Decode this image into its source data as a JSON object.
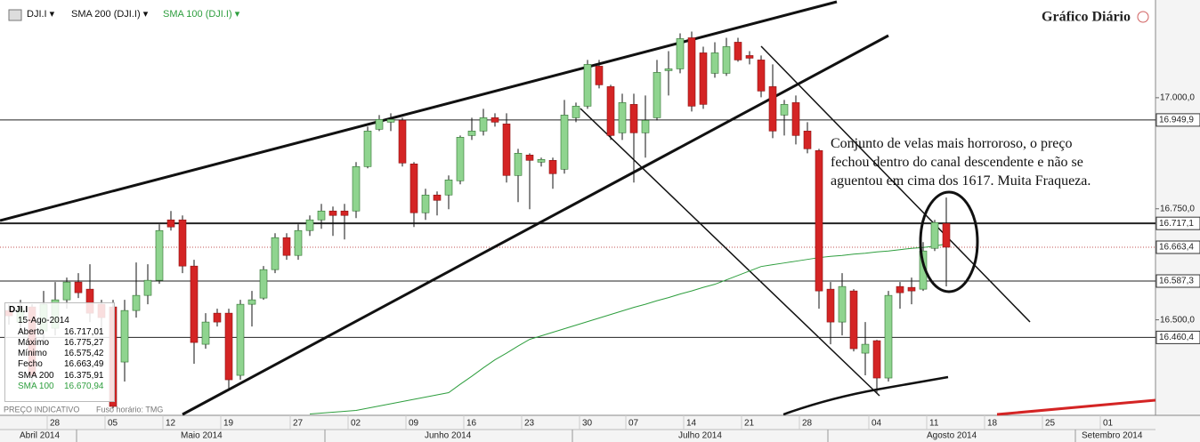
{
  "chart_data": {
    "type": "candlestick",
    "title": "Gráfico Diário",
    "toolbar": [
      "DJI.I",
      "SMA 200 (DJI.I)",
      "SMA 100 (DJI.I)"
    ],
    "footer": [
      "PREÇO INDICATIVO",
      "Fuso horário: TMG"
    ],
    "months": [
      "Abril 2014",
      "Maio 2014",
      "Junho 2014",
      "Julho 2014",
      "Agosto 2014",
      "Setembro 2014"
    ],
    "categories": [
      null,
      null,
      null,
      null,
      "28",
      null,
      null,
      null,
      null,
      "05",
      null,
      null,
      null,
      null,
      "12",
      null,
      null,
      null,
      null,
      "19",
      null,
      null,
      null,
      null,
      null,
      "27",
      null,
      null,
      null,
      null,
      "02",
      null,
      null,
      null,
      null,
      "09",
      null,
      null,
      null,
      null,
      "16",
      null,
      null,
      null,
      null,
      "23",
      null,
      null,
      null,
      null,
      "30",
      null,
      null,
      null,
      "07",
      null,
      null,
      null,
      null,
      "14",
      null,
      null,
      null,
      null,
      "21",
      null,
      null,
      null,
      null,
      "28",
      null,
      null,
      null,
      null,
      null,
      "04",
      null,
      null,
      null,
      null,
      "11",
      null
    ],
    "future_ticks": [
      "18",
      "25",
      "01"
    ],
    "ylim": [
      16285,
      17220
    ],
    "yticks": [
      {
        "value": 17000,
        "label": "17.000,0"
      },
      {
        "value": 16750,
        "label": "16.750,0"
      },
      {
        "value": 16500,
        "label": "16.500,0"
      }
    ],
    "levels": [
      {
        "value": 16949.9,
        "label": "16.949,9"
      },
      {
        "value": 16717.1,
        "label": "16.717,1"
      },
      {
        "value": 16663.4,
        "label": "16.663,4"
      },
      {
        "value": 16587.3,
        "label": "16.587,3"
      },
      {
        "value": 16460.4,
        "label": "16.460,4"
      }
    ],
    "up_color": "#8fd48f",
    "down_color": "#d42424",
    "open": [
      16521,
      16495,
      16529,
      16475,
      16481,
      16545,
      16585,
      16569,
      16535,
      16529,
      16405,
      16521,
      16555,
      16589,
      16725,
      16725,
      16621,
      16445,
      16515,
      16515,
      16375,
      16535,
      16549,
      16613,
      16685,
      16645,
      16701,
      16725,
      16745,
      16745,
      16745,
      16845,
      16929,
      16945,
      16949,
      16851,
      16741,
      16781,
      16781,
      16813,
      16915,
      16925,
      16955,
      16941,
      16825,
      16871,
      16855,
      16859,
      16839,
      16955,
      16981,
      17071,
      17025,
      16921,
      16985,
      16921,
      16955,
      17061,
      17065,
      17135,
      17101,
      17055,
      17055,
      17125,
      17095,
      17085,
      17025,
      16961,
      16989,
      16925,
      16881,
      16569,
      16495,
      16565,
      16425,
      16453,
      16369,
      16575,
      16573,
      16569,
      16661,
      16717.01
    ],
    "high": [
      16535,
      16545,
      16535,
      16565,
      16585,
      16595,
      16605,
      16625,
      16545,
      16545,
      16545,
      16629,
      16625,
      16715,
      16745,
      16735,
      16635,
      16515,
      16525,
      16525,
      16545,
      16565,
      16621,
      16695,
      16695,
      16715,
      16735,
      16761,
      16755,
      16761,
      16855,
      16935,
      16961,
      16965,
      16955,
      16855,
      16795,
      16789,
      16825,
      16915,
      16955,
      16975,
      16965,
      16965,
      16885,
      16875,
      16865,
      16865,
      16995,
      16989,
      17085,
      17085,
      17029,
      17009,
      17009,
      17005,
      17085,
      17105,
      17145,
      17149,
      17115,
      17125,
      17135,
      17135,
      17105,
      17095,
      17075,
      16995,
      17005,
      16945,
      16885,
      16585,
      16605,
      16569,
      16495,
      16455,
      16565,
      16585,
      16595,
      16675,
      16725,
      16775.27
    ],
    "low": [
      16489,
      16465,
      16355,
      16445,
      16465,
      16525,
      16549,
      16495,
      16465,
      16301,
      16361,
      16505,
      16535,
      16581,
      16701,
      16605,
      16401,
      16435,
      16485,
      16341,
      16365,
      16485,
      16545,
      16605,
      16635,
      16635,
      16689,
      16705,
      16689,
      16681,
      16729,
      16841,
      16925,
      16925,
      16845,
      16709,
      16725,
      16735,
      16749,
      16805,
      16905,
      16915,
      16935,
      16809,
      16765,
      16749,
      16845,
      16795,
      16829,
      16945,
      16975,
      17021,
      16905,
      16905,
      16809,
      16865,
      16949,
      17005,
      17055,
      16969,
      16975,
      17045,
      17049,
      17081,
      17075,
      17001,
      16909,
      16915,
      16895,
      16875,
      16525,
      16445,
      16465,
      16429,
      16375,
      16335,
      16361,
      16525,
      16535,
      16565,
      16655,
      16575.42
    ],
    "close": [
      16509,
      16525,
      16375,
      16535,
      16545,
      16585,
      16561,
      16515,
      16505,
      16305,
      16521,
      16555,
      16589,
      16701,
      16709,
      16621,
      16449,
      16495,
      16495,
      16365,
      16535,
      16545,
      16613,
      16685,
      16645,
      16701,
      16725,
      16745,
      16735,
      16735,
      16845,
      16925,
      16951,
      16951,
      16853,
      16741,
      16781,
      16769,
      16815,
      16911,
      16925,
      16955,
      16945,
      16825,
      16875,
      16859,
      16861,
      16829,
      16961,
      16981,
      17075,
      17029,
      16915,
      16989,
      16921,
      16949,
      17057,
      17065,
      17133,
      16981,
      16985,
      17101,
      17115,
      17085,
      17089,
      17015,
      16925,
      16985,
      16915,
      16885,
      16565,
      16495,
      16575,
      16435,
      16445,
      16369,
      16555,
      16561,
      16565,
      16655,
      16719,
      16663.49
    ],
    "sma": {
      "color": "#2e9e3e",
      "values": [
        null,
        null,
        null,
        null,
        null,
        null,
        null,
        null,
        null,
        null,
        null,
        null,
        null,
        null,
        null,
        null,
        null,
        null,
        null,
        null,
        null,
        null,
        null,
        null,
        null,
        null,
        16288,
        16290,
        16292,
        16294,
        16296,
        16301,
        16306,
        16311,
        16316,
        16321,
        16326,
        16331,
        16336,
        16355,
        16373,
        16392,
        16410,
        16425,
        16441,
        16456,
        16464,
        16472,
        16480,
        16488,
        16496,
        16504,
        16512,
        16520,
        16528,
        16535,
        16543,
        16550,
        16558,
        16565,
        16573,
        16580,
        16590,
        16600,
        16610,
        16620,
        16624,
        16628,
        16632,
        16636,
        16640,
        16643,
        16645,
        16648,
        16650,
        16653,
        16655,
        16658,
        16661,
        16663,
        16666,
        16670.94
      ]
    },
    "info_box": {
      "title": "DJI.I",
      "date": "15-Ago-2014",
      "rows": [
        [
          "Aberto",
          "16.717,01"
        ],
        [
          "Máximo",
          "16.775,27"
        ],
        [
          "Mínimo",
          "16.575,42"
        ],
        [
          "Fecho",
          "16.663,49"
        ],
        [
          "SMA 200",
          "16.375,91"
        ],
        [
          "SMA 100",
          "16.670,94"
        ]
      ]
    },
    "annotation": [
      "Conjunto de velas mais horroroso, o preço",
      "fechou dentro do canal descendente e não se",
      "aguentou em cima dos 1617. Muita Fraqueza."
    ]
  }
}
